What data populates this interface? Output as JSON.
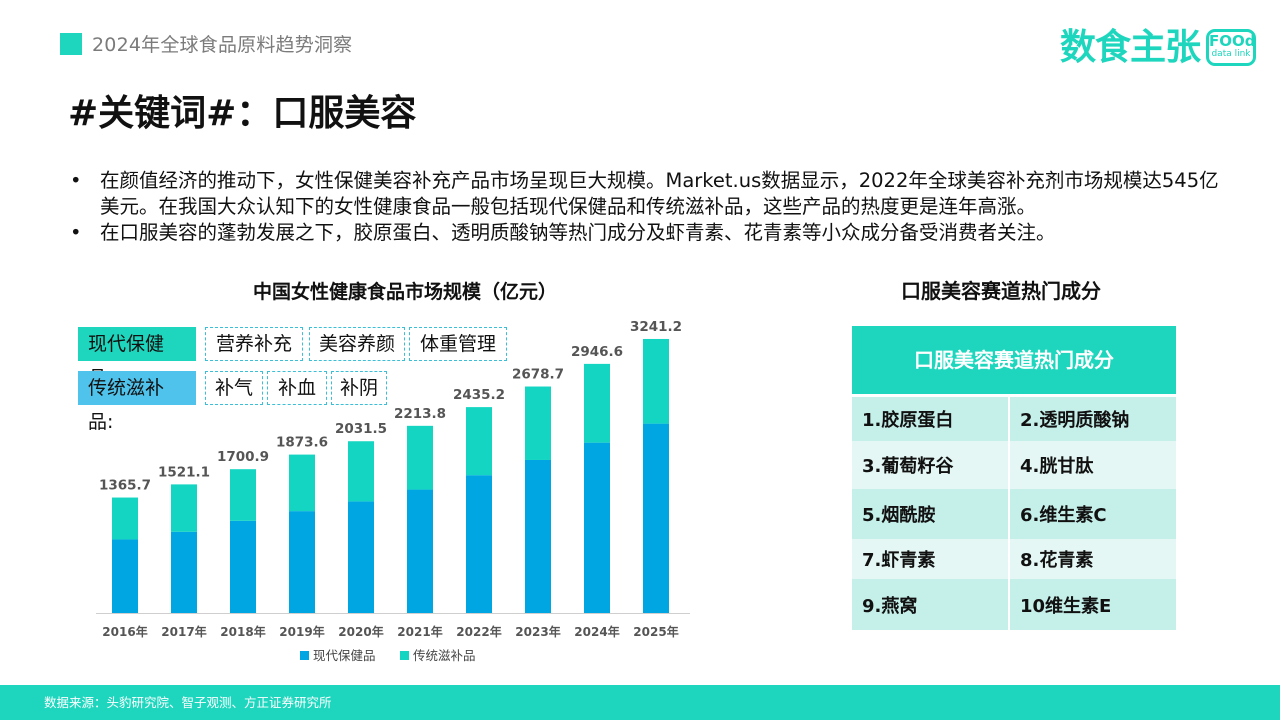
{
  "header": {
    "title": "2024年全球食品原料趋势洞察",
    "accent_color": "#1dd6bd",
    "logo": {
      "cn": "数食主张",
      "en_line1": "FOOd",
      "en_line2": "data link"
    }
  },
  "page_title": "#关键词#：口服美容",
  "bullets": [
    {
      "marker": "•",
      "text": "在颜值经济的推动下，女性保健美容补充产品市场呈现巨大规模。Market.us数据显示，2022年全球美容补充剂市场规模达545亿美元。在我国大众认知下的女性健康食品一般包括现代保健品和传统滋补品，这些产品的热度更是连年高涨。"
    },
    {
      "marker": "•",
      "text": "在口服美容的蓬勃发展之下，胶原蛋白、透明质酸钠等热门成分及虾青素、花青素等小众成分备受消费者关注。"
    }
  ],
  "tags": {
    "modern": {
      "label": "现代保健品:",
      "color": "#1dd6bd",
      "items": [
        "营养补充",
        "美容养颜",
        "体重管理"
      ]
    },
    "traditional": {
      "label": "传统滋补品:",
      "color": "#4fc3ec",
      "items": [
        "补气",
        "补血",
        "补阴"
      ]
    }
  },
  "chart_data": {
    "type": "bar",
    "stacked": true,
    "title": "中国女性健康食品市场规模（亿元）",
    "categories": [
      "2016年",
      "2017年",
      "2018年",
      "2019年",
      "2020年",
      "2021年",
      "2022年",
      "2023年",
      "2024年",
      "2025年"
    ],
    "totals": [
      "1365.7",
      "1521.1",
      "1700.9",
      "1873.6",
      "2031.5",
      "2213.8",
      "2435.2",
      "2678.7",
      "2946.6",
      "3241.2"
    ],
    "series": [
      {
        "name": "现代保健品",
        "color": "#00a6e2",
        "values": [
          870,
          960,
          1090,
          1205,
          1320,
          1460,
          1630,
          1810,
          2015,
          2240
        ]
      },
      {
        "name": "传统滋补品",
        "color": "#13d5c1",
        "values": [
          495.7,
          561.1,
          610.9,
          668.6,
          711.5,
          753.8,
          805.2,
          868.7,
          931.6,
          1001.2
        ]
      }
    ],
    "ylim": [
      0,
      3300
    ],
    "grid": false,
    "legend_position": "bottom"
  },
  "ingredients": {
    "section_title": "口服美容赛道热门成分",
    "table_header": "口服美容赛道热门成分",
    "header_color": "#1dd6bd",
    "rows": [
      [
        "1.胶原蛋白",
        "2.透明质酸钠"
      ],
      [
        "3.葡萄籽谷",
        "4.胱甘肽"
      ],
      [
        "5.烟酰胺",
        "6.维生素C"
      ],
      [
        "7.虾青素",
        "8.花青素"
      ],
      [
        "9.燕窝",
        "10维生素E"
      ]
    ],
    "row_colors": [
      "#c5efe9",
      "#e4f7f4",
      "#c5efe9",
      "#e4f7f4",
      "#c5efe9"
    ]
  },
  "footer": {
    "source": "数据来源：头豹研究院、智子观测、方正证券研究所"
  }
}
